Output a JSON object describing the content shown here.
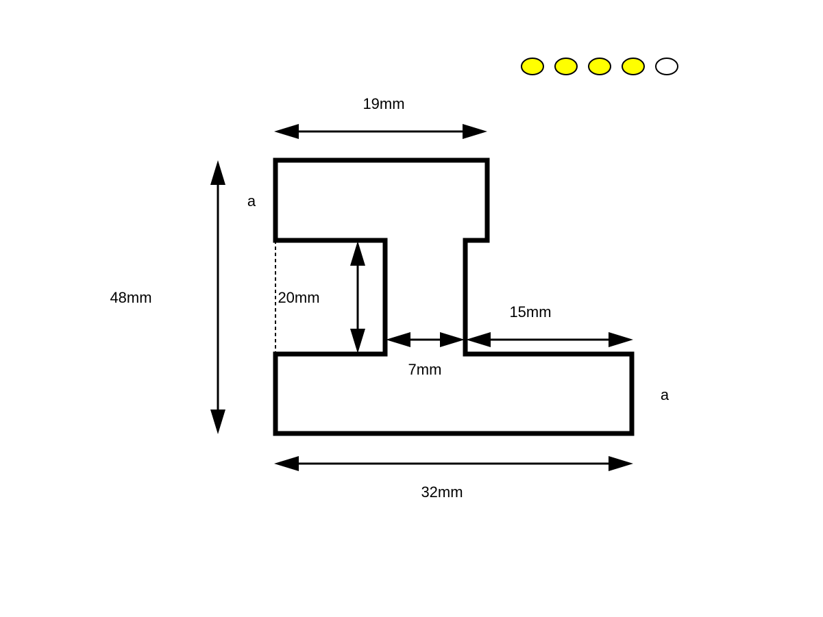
{
  "diagram": {
    "labels": {
      "top_width": "19mm",
      "total_height": "48mm",
      "flange_height_top": "a",
      "gap_height": "20mm",
      "stem_width": "7mm",
      "right_overhang": "15mm",
      "flange_height_bottom": "a",
      "bottom_width": "32mm"
    }
  },
  "difficulty": {
    "filled": 4,
    "total": 5,
    "filled_color": "#ffff00",
    "empty_color": "#ffffff"
  }
}
